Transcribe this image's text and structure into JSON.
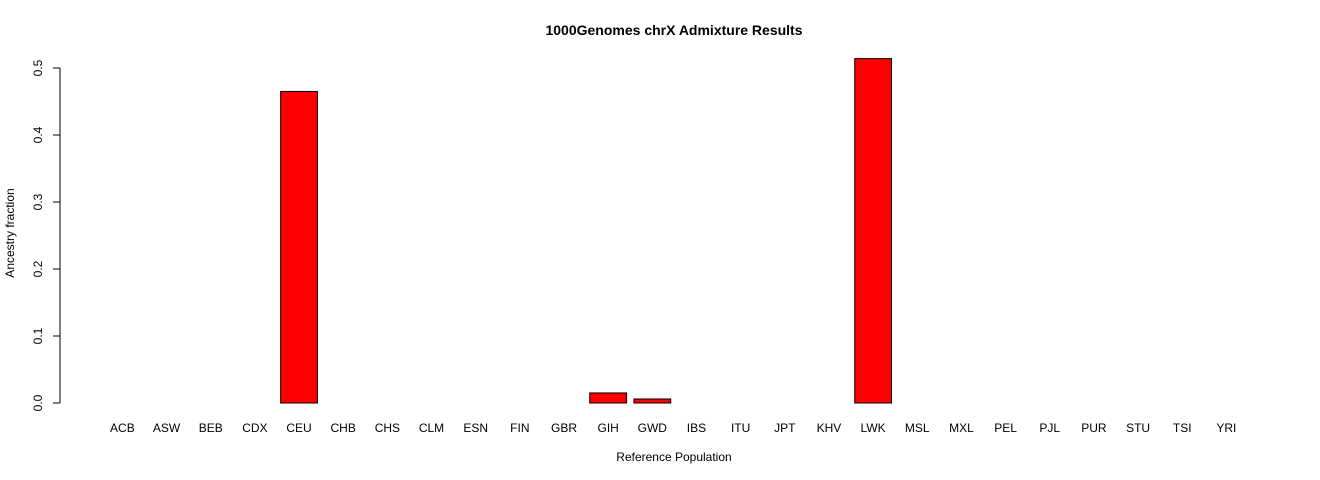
{
  "chart_data": {
    "type": "bar",
    "title": "1000Genomes chrX Admixture Results",
    "xlabel": "Reference Population",
    "ylabel": "Ancestry fraction",
    "categories": [
      "ACB",
      "ASW",
      "BEB",
      "CDX",
      "CEU",
      "CHB",
      "CHS",
      "CLM",
      "ESN",
      "FIN",
      "GBR",
      "GIH",
      "GWD",
      "IBS",
      "ITU",
      "JPT",
      "KHV",
      "LWK",
      "MSL",
      "MXL",
      "PEL",
      "PJL",
      "PUR",
      "STU",
      "TSI",
      "YRI"
    ],
    "values": [
      0,
      0,
      0,
      0,
      0.465,
      0,
      0,
      0,
      0,
      0,
      0,
      0.015,
      0.006,
      0,
      0,
      0,
      0,
      0.514,
      0,
      0,
      0,
      0,
      0,
      0,
      0,
      0
    ],
    "ylim": [
      0,
      0.5
    ],
    "yticks": [
      0.0,
      0.1,
      0.2,
      0.3,
      0.4,
      0.5
    ],
    "ytick_labels": [
      "0.0",
      "0.1",
      "0.2",
      "0.3",
      "0.4",
      "0.5"
    ],
    "bar_color": "#ff0000",
    "grid": false,
    "legend": "none"
  }
}
